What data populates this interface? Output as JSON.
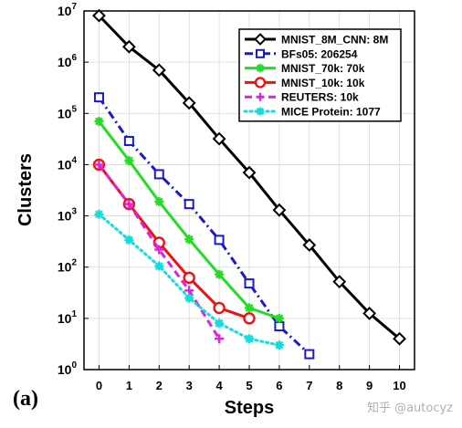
{
  "panel_label": "(a)",
  "watermark": "知乎 @autocyz",
  "chart_data": {
    "type": "line",
    "title": "",
    "xlabel": "Steps",
    "ylabel": "Clusters",
    "xlim": [
      -0.5,
      10.5
    ],
    "ylim": [
      1,
      10000000
    ],
    "y_scale": "log",
    "x_ticks": [
      "0",
      "1",
      "2",
      "3",
      "4",
      "5",
      "6",
      "7",
      "8",
      "9",
      "10"
    ],
    "y_ticks": [
      {
        "value": 1,
        "base": "10",
        "exp": "0"
      },
      {
        "value": 10,
        "base": "10",
        "exp": "1"
      },
      {
        "value": 100,
        "base": "10",
        "exp": "2"
      },
      {
        "value": 1000,
        "base": "10",
        "exp": "3"
      },
      {
        "value": 10000,
        "base": "10",
        "exp": "4"
      },
      {
        "value": 100000,
        "base": "10",
        "exp": "5"
      },
      {
        "value": 1000000,
        "base": "10",
        "exp": "6"
      },
      {
        "value": 10000000,
        "base": "10",
        "exp": "7"
      }
    ],
    "grid": true,
    "legend_position": "top-right",
    "series": [
      {
        "name": "MNIST_8M_CNN: 8M",
        "color": "#000000",
        "marker": "diamond",
        "line": "solid",
        "x": [
          0,
          1,
          2,
          3,
          4,
          5,
          6,
          7,
          8,
          9,
          10
        ],
        "y": [
          8100000,
          2000000,
          700000,
          160000,
          32000,
          7000,
          1300,
          270,
          52,
          12.5,
          4
        ]
      },
      {
        "name": "BFs05: 206254",
        "color": "#1a1acc",
        "marker": "square",
        "line": "dashdot",
        "x": [
          0,
          1,
          2,
          3,
          4,
          5,
          6,
          7
        ],
        "y": [
          206254,
          29000,
          6500,
          1700,
          340,
          48,
          7,
          2
        ]
      },
      {
        "name": "MNIST_70k: 70k",
        "color": "#22dd22",
        "marker": "star",
        "line": "solid",
        "x": [
          0,
          1,
          2,
          3,
          4,
          5,
          6
        ],
        "y": [
          70000,
          12000,
          1900,
          350,
          72,
          16,
          10
        ]
      },
      {
        "name": "MNIST_10k: 10k",
        "color": "#ee1111",
        "marker": "circle",
        "line": "solid",
        "x": [
          0,
          1,
          2,
          3,
          4,
          5
        ],
        "y": [
          10000,
          1700,
          300,
          62,
          16,
          10
        ]
      },
      {
        "name": "REUTERS: 10k",
        "color": "#dd22dd",
        "marker": "plus",
        "line": "dashed",
        "x": [
          0,
          1,
          2,
          3,
          4
        ],
        "y": [
          10000,
          1700,
          220,
          35,
          4
        ]
      },
      {
        "name": "MICE Protein: 1077",
        "color": "#11dddd",
        "marker": "asterisk",
        "line": "dotted",
        "x": [
          0,
          1,
          2,
          3,
          4,
          5,
          6
        ],
        "y": [
          1077,
          340,
          105,
          25,
          8,
          4,
          3
        ]
      }
    ]
  }
}
